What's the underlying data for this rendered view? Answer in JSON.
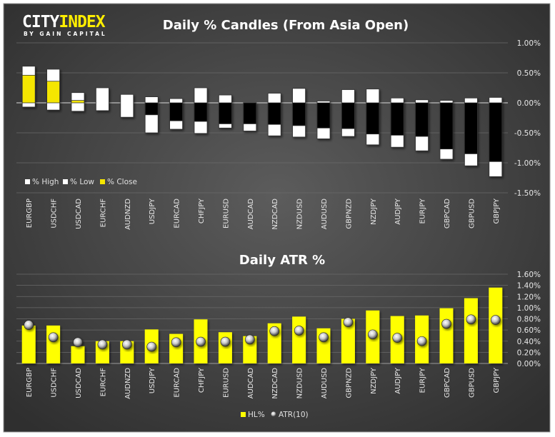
{
  "logo": {
    "part1": "CITY",
    "part2": "INDEX",
    "tagline": "BY GAIN CAPITAL"
  },
  "colors": {
    "bg_center": "#5a5a5a",
    "bg_edge": "#2e2e2e",
    "yellow": "#ffff00",
    "candle_yellow": "#f5e600",
    "white": "#ffffff",
    "black": "#000000"
  },
  "chart_data": [
    {
      "type": "bar",
      "subtype": "candlestick-from-open",
      "title": "Daily % Candles (From Asia Open)",
      "categories": [
        "EURGBP",
        "USDCHF",
        "USDCAD",
        "EURCHF",
        "AUDNZD",
        "USDJPY",
        "EURCAD",
        "CHFJPY",
        "EURUSD",
        "AUDCAD",
        "NZDCAD",
        "NZDUSD",
        "AUDUSD",
        "GBPNZD",
        "NZDJPY",
        "AUDJPY",
        "EURJPY",
        "GBPCAD",
        "GBPUSD",
        "GBPJPY"
      ],
      "series": [
        {
          "name": "% High",
          "values": [
            0.61,
            0.56,
            0.17,
            0.25,
            0.14,
            0.1,
            0.07,
            0.25,
            0.13,
            0.0,
            0.16,
            0.24,
            0.03,
            0.22,
            0.23,
            0.08,
            0.05,
            0.04,
            0.08,
            0.09
          ]
        },
        {
          "name": "% Low",
          "values": [
            -0.07,
            -0.12,
            -0.14,
            -0.13,
            -0.24,
            -0.5,
            -0.44,
            -0.51,
            -0.42,
            -0.47,
            -0.55,
            -0.57,
            -0.6,
            -0.56,
            -0.7,
            -0.74,
            -0.8,
            -0.94,
            -1.05,
            -1.23
          ]
        },
        {
          "name": "% Close",
          "values": [
            0.46,
            0.36,
            0.04,
            0.0,
            0.0,
            -0.2,
            -0.3,
            -0.31,
            -0.35,
            -0.35,
            -0.36,
            -0.38,
            -0.42,
            -0.43,
            -0.52,
            -0.54,
            -0.56,
            -0.77,
            -0.85,
            -0.98
          ]
        }
      ],
      "ylim": [
        -1.5,
        1.0
      ],
      "yticks": [
        "1.00%",
        "0.50%",
        "0.00%",
        "-0.50%",
        "-1.00%",
        "-1.50%"
      ],
      "ytick_values": [
        1.0,
        0.5,
        0.0,
        -0.5,
        -1.0,
        -1.5
      ],
      "legend": [
        "% High",
        "% Low",
        "% Close"
      ],
      "legend_position": "bottom-left",
      "grid": true
    },
    {
      "type": "bar",
      "title": "Daily ATR %",
      "categories": [
        "EURGBP",
        "USDCHF",
        "USDCAD",
        "EURCHF",
        "AUDNZD",
        "USDJPY",
        "EURCAD",
        "CHFJPY",
        "EURUSD",
        "AUDCAD",
        "NZDCAD",
        "NZDUSD",
        "AUDUSD",
        "GBPNZD",
        "NZDJPY",
        "AUDJPY",
        "EURJPY",
        "GBPCAD",
        "GBPUSD",
        "GBPJPY"
      ],
      "series": [
        {
          "name": "HL%",
          "type": "bar",
          "values": [
            0.68,
            0.68,
            0.31,
            0.4,
            0.4,
            0.61,
            0.53,
            0.79,
            0.56,
            0.49,
            0.72,
            0.84,
            0.63,
            0.8,
            0.95,
            0.85,
            0.86,
            0.99,
            1.17,
            1.36
          ]
        },
        {
          "name": "ATR(10)",
          "type": "scatter",
          "values": [
            0.69,
            0.47,
            0.38,
            0.34,
            0.34,
            0.3,
            0.38,
            0.39,
            0.39,
            0.43,
            0.58,
            0.59,
            0.47,
            0.74,
            0.52,
            0.46,
            0.4,
            0.71,
            0.79,
            0.78
          ]
        }
      ],
      "ylim": [
        0,
        1.6
      ],
      "yticks": [
        "1.60%",
        "1.40%",
        "1.20%",
        "1.00%",
        "0.80%",
        "0.60%",
        "0.40%",
        "0.20%",
        "0.00%"
      ],
      "ytick_values": [
        1.6,
        1.4,
        1.2,
        1.0,
        0.8,
        0.6,
        0.4,
        0.2,
        0.0
      ],
      "legend": [
        "HL%",
        "ATR(10)"
      ],
      "legend_position": "bottom-center",
      "grid": true
    }
  ]
}
